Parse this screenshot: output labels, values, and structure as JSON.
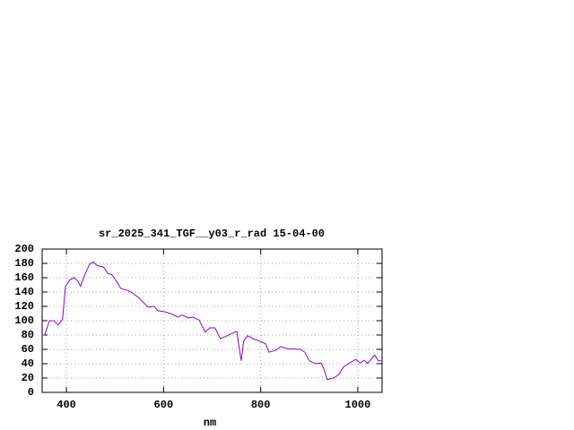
{
  "chart_data": {
    "type": "line",
    "title": "sr_2025_341_TGF__y03_r_rad 15-04-00",
    "x_label": "nm",
    "x": [
      350,
      355,
      365,
      374,
      383,
      392,
      398,
      407,
      416,
      424,
      429,
      439,
      448,
      455,
      463,
      476,
      485,
      494,
      503,
      512,
      531,
      549,
      568,
      581,
      588,
      605,
      618,
      629,
      638,
      651,
      660,
      673,
      686,
      695,
      706,
      717,
      728,
      740,
      751,
      754,
      760,
      765,
      773,
      784,
      799,
      810,
      817,
      832,
      841,
      854,
      882,
      891,
      900,
      913,
      924,
      930,
      937,
      950,
      961,
      970,
      983,
      996,
      1005,
      1013,
      1020,
      1027,
      1035,
      1042,
      1050
    ],
    "series": [
      {
        "color": "#9400d3",
        "values": [
          80,
          80,
          100,
          100,
          94,
          102,
          148,
          157,
          160,
          155,
          148,
          166,
          179,
          182,
          177,
          175,
          166,
          164,
          155,
          145,
          141,
          132,
          119,
          120,
          114,
          112,
          109,
          105,
          108,
          104,
          105,
          101,
          84,
          90,
          90,
          75,
          78,
          82,
          85,
          70,
          44,
          72,
          79,
          75,
          71,
          68,
          56,
          59,
          64,
          61,
          60,
          56,
          44,
          40,
          41,
          33,
          18,
          20,
          25,
          35,
          41,
          46,
          41,
          45,
          40,
          46,
          52,
          44,
          44
        ]
      }
    ],
    "xlim": [
      350,
      1050
    ],
    "xticks": [
      400,
      600,
      800,
      1000
    ],
    "ylim": [
      0,
      200
    ],
    "yticks": [
      0,
      20,
      40,
      60,
      80,
      100,
      120,
      140,
      160,
      180,
      200
    ],
    "grid": true
  }
}
